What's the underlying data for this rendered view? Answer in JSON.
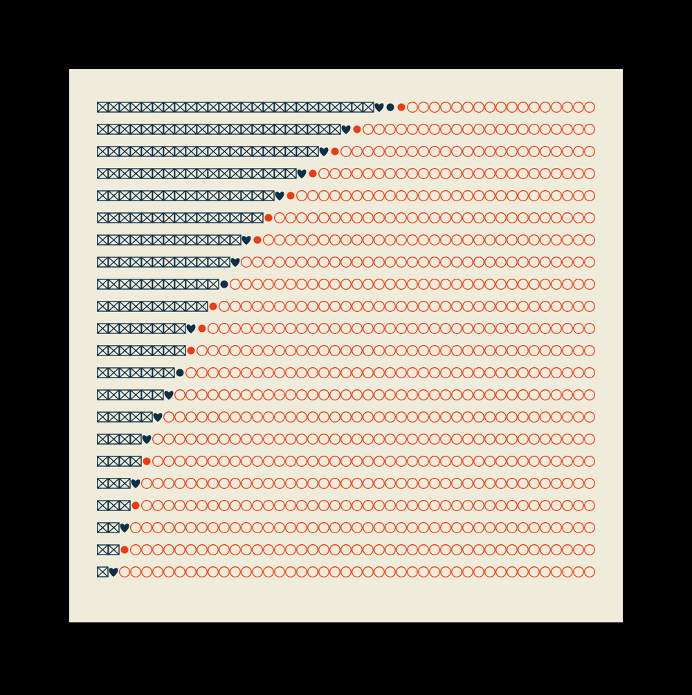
{
  "artwork": {
    "background": "#000000",
    "panel": "#efecdb",
    "dark": "#0d3048",
    "accent": "#f03a14",
    "slots": 45,
    "rows": [
      {
        "boxes": 25,
        "marks": [
          "heart",
          "dot",
          "red-dot"
        ]
      },
      {
        "boxes": 22,
        "marks": [
          "heart",
          "red-dot"
        ]
      },
      {
        "boxes": 20,
        "marks": [
          "heart",
          "red-dot"
        ]
      },
      {
        "boxes": 18,
        "marks": [
          "heart",
          "red-dot"
        ]
      },
      {
        "boxes": 16,
        "marks": [
          "heart",
          "red-dot"
        ]
      },
      {
        "boxes": 15,
        "marks": [
          "red-dot"
        ]
      },
      {
        "boxes": 13,
        "marks": [
          "heart",
          "red-dot"
        ]
      },
      {
        "boxes": 12,
        "marks": [
          "heart"
        ]
      },
      {
        "boxes": 11,
        "marks": [
          "dot"
        ]
      },
      {
        "boxes": 10,
        "marks": [
          "red-dot"
        ]
      },
      {
        "boxes": 8,
        "marks": [
          "heart",
          "red-dot"
        ]
      },
      {
        "boxes": 8,
        "marks": [
          "red-dot"
        ]
      },
      {
        "boxes": 7,
        "marks": [
          "dot"
        ]
      },
      {
        "boxes": 6,
        "marks": [
          "heart"
        ]
      },
      {
        "boxes": 5,
        "marks": [
          "heart"
        ]
      },
      {
        "boxes": 4,
        "marks": [
          "heart"
        ]
      },
      {
        "boxes": 4,
        "marks": [
          "red-dot"
        ]
      },
      {
        "boxes": 3,
        "marks": [
          "heart"
        ]
      },
      {
        "boxes": 3,
        "marks": [
          "red-dot"
        ]
      },
      {
        "boxes": 2,
        "marks": [
          "heart"
        ]
      },
      {
        "boxes": 2,
        "marks": [
          "red-dot"
        ]
      },
      {
        "boxes": 1,
        "marks": [
          "heart"
        ]
      }
    ]
  }
}
